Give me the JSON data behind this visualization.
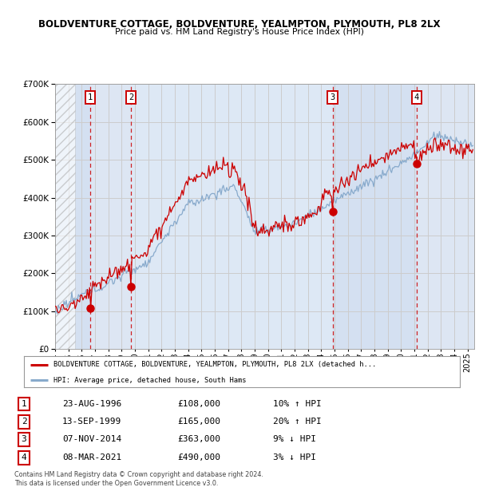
{
  "title": "BOLDVENTURE COTTAGE, BOLDVENTURE, YEALMPTON, PLYMOUTH, PL8 2LX",
  "subtitle": "Price paid vs. HM Land Registry's House Price Index (HPI)",
  "ylim": [
    0,
    700000
  ],
  "yticks": [
    0,
    100000,
    200000,
    300000,
    400000,
    500000,
    600000,
    700000
  ],
  "xlim_start": 1994.0,
  "xlim_end": 2025.5,
  "sale_dates": [
    1996.64,
    1999.71,
    2014.85,
    2021.18
  ],
  "sale_prices": [
    108000,
    165000,
    363000,
    490000
  ],
  "sale_labels": [
    "1",
    "2",
    "3",
    "4"
  ],
  "sale_info": [
    {
      "num": "1",
      "date": "23-AUG-1996",
      "price": "£108,000",
      "rel": "10% ↑ HPI"
    },
    {
      "num": "2",
      "date": "13-SEP-1999",
      "price": "£165,000",
      "rel": "20% ↑ HPI"
    },
    {
      "num": "3",
      "date": "07-NOV-2014",
      "price": "£363,000",
      "rel": "9% ↓ HPI"
    },
    {
      "num": "4",
      "date": "08-MAR-2021",
      "price": "£490,000",
      "rel": "3% ↓ HPI"
    }
  ],
  "legend_line1": "BOLDVENTURE COTTAGE, BOLDVENTURE, YEALMPTON, PLYMOUTH, PL8 2LX (detached h...",
  "legend_line2": "HPI: Average price, detached house, South Hams",
  "footer": "Contains HM Land Registry data © Crown copyright and database right 2024.\nThis data is licensed under the Open Government Licence v3.0.",
  "hatch_end_year": 1995.5,
  "red_color": "#cc0000",
  "blue_color": "#88aacc",
  "grid_color": "#cccccc",
  "bg_color": "#ffffff",
  "plot_bg": "#dde8f5"
}
